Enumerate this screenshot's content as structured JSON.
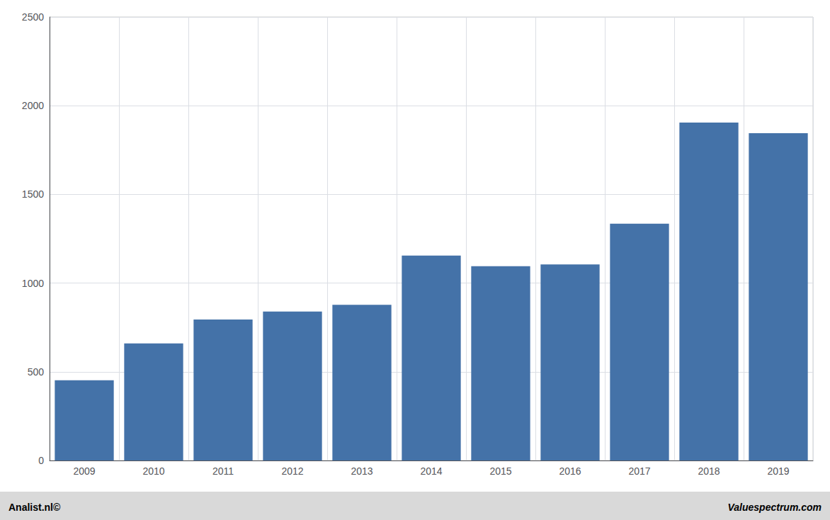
{
  "chart_data": {
    "type": "bar",
    "categories": [
      "2009",
      "2010",
      "2011",
      "2012",
      "2013",
      "2014",
      "2015",
      "2016",
      "2017",
      "2018",
      "2019"
    ],
    "values": [
      452,
      660,
      795,
      840,
      878,
      1155,
      1095,
      1105,
      1335,
      1905,
      1845
    ],
    "color": "#4472A8",
    "ylim": [
      0,
      2500
    ],
    "yticks": [
      0,
      500,
      1000,
      1500,
      2000,
      2500
    ],
    "grid": true,
    "annotations": [
      "Analist.nl©",
      "Valuespectrum.com"
    ]
  }
}
